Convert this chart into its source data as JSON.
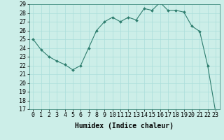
{
  "x": [
    0,
    1,
    2,
    3,
    4,
    5,
    6,
    7,
    8,
    9,
    10,
    11,
    12,
    13,
    14,
    15,
    16,
    17,
    18,
    19,
    20,
    21,
    22,
    23
  ],
  "y": [
    25.0,
    23.8,
    23.0,
    22.5,
    22.1,
    21.5,
    22.0,
    24.0,
    26.0,
    27.0,
    27.5,
    27.0,
    27.5,
    27.2,
    28.5,
    28.3,
    29.2,
    28.3,
    28.3,
    28.1,
    26.5,
    25.9,
    22.0,
    16.7
  ],
  "xlabel": "Humidex (Indice chaleur)",
  "ylim": [
    17,
    29
  ],
  "xlim": [
    -0.5,
    23.5
  ],
  "yticks": [
    17,
    18,
    19,
    20,
    21,
    22,
    23,
    24,
    25,
    26,
    27,
    28,
    29
  ],
  "xticks": [
    0,
    1,
    2,
    3,
    4,
    5,
    6,
    7,
    8,
    9,
    10,
    11,
    12,
    13,
    14,
    15,
    16,
    17,
    18,
    19,
    20,
    21,
    22,
    23
  ],
  "line_color": "#2e7d6e",
  "marker_color": "#2e7d6e",
  "bg_color": "#cceee8",
  "grid_color": "#aaddda",
  "xlabel_fontsize": 7,
  "tick_fontsize": 6
}
